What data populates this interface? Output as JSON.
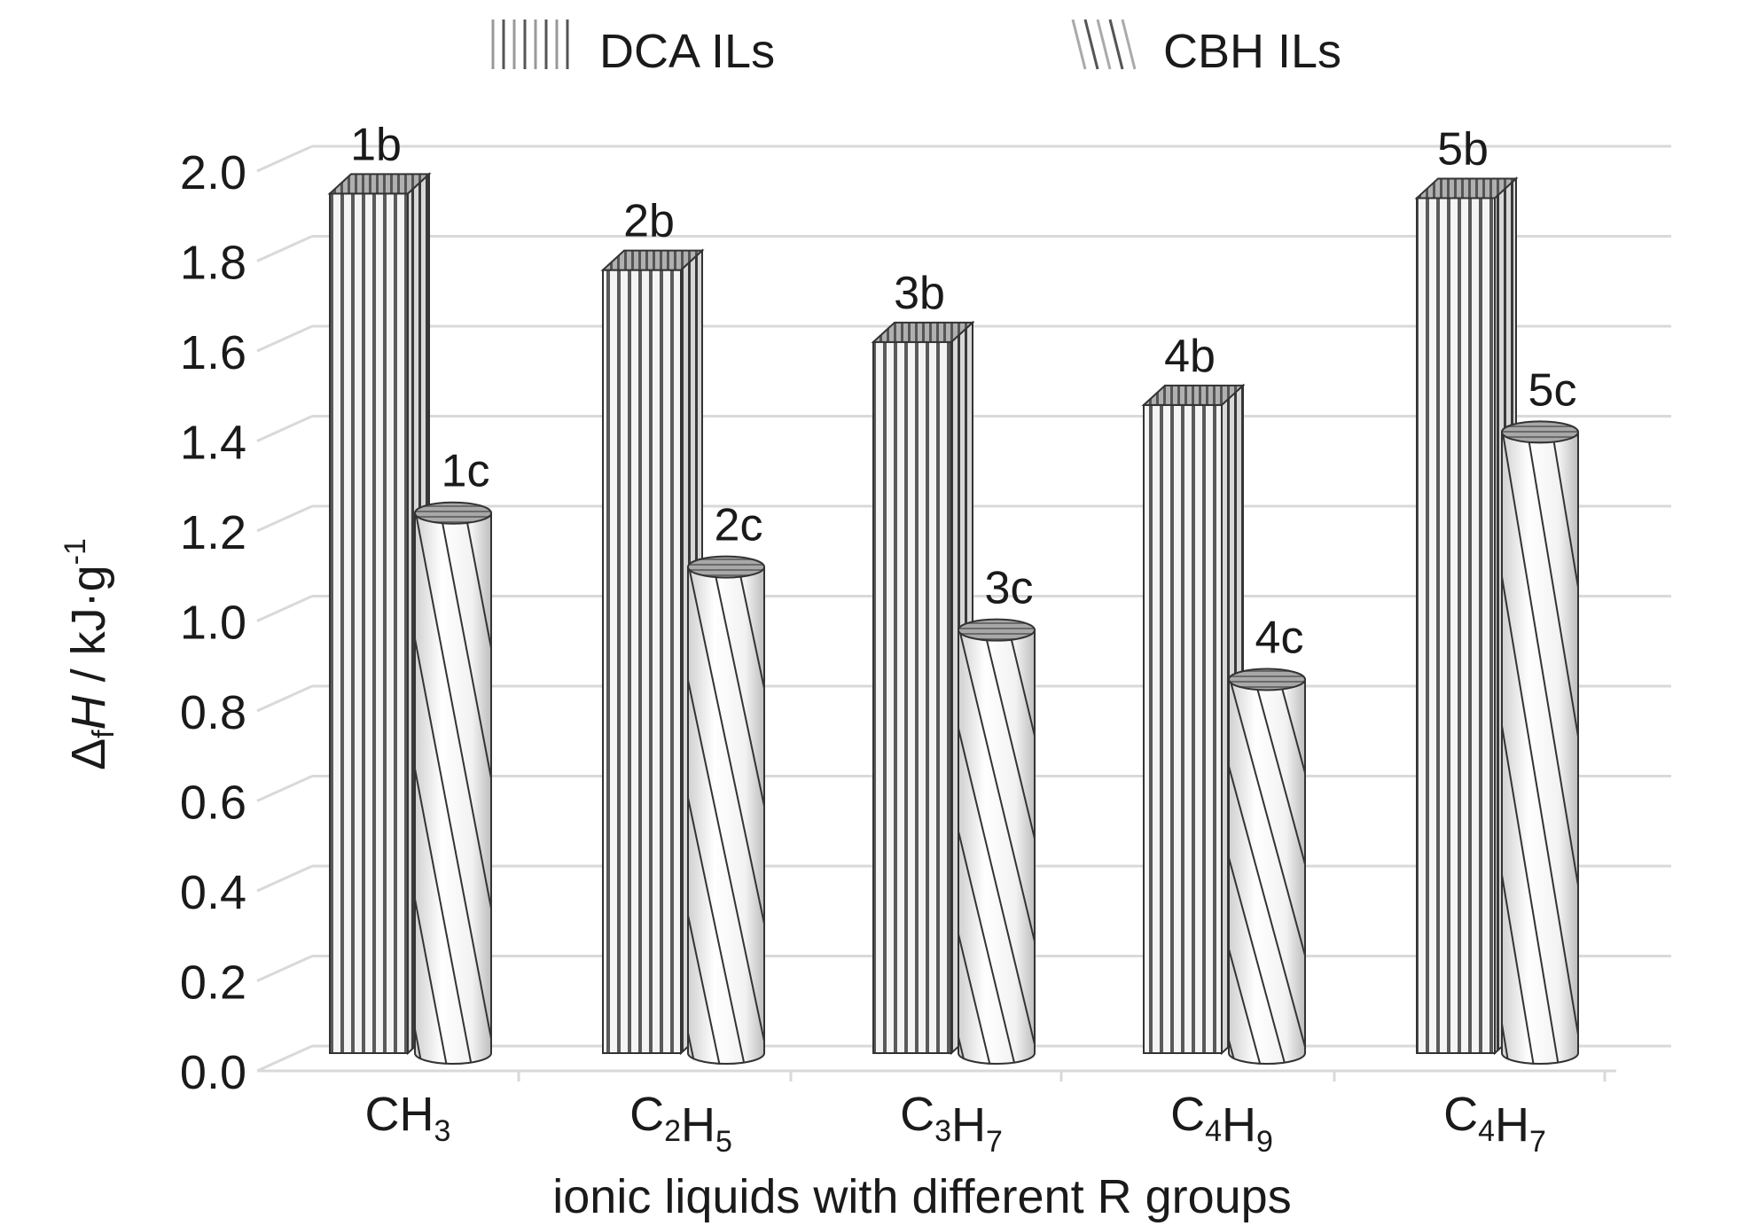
{
  "chart_data": {
    "type": "bar",
    "xlabel": "ionic liquids with different R groups",
    "ylabel": {
      "delta": "Δ",
      "sub": "f",
      "var": "H",
      "unit": " / kJ·g",
      "sup": "-1"
    },
    "ylim": [
      0,
      2.0
    ],
    "yticks": [
      "0.0",
      "0.2",
      "0.4",
      "0.6",
      "0.8",
      "1.0",
      "1.2",
      "1.4",
      "1.6",
      "1.8",
      "2.0"
    ],
    "grid": true,
    "legend_position": "top",
    "categories": [
      {
        "base": "CH",
        "sub": "3",
        "parts": [
          [
            "CH",
            "3"
          ]
        ]
      },
      {
        "parts": [
          [
            "C",
            "2"
          ],
          [
            "H",
            "5"
          ]
        ]
      },
      {
        "parts": [
          [
            "C",
            "3"
          ],
          [
            "H",
            "7"
          ]
        ]
      },
      {
        "parts": [
          [
            "C",
            "4"
          ],
          [
            "H",
            "9"
          ]
        ]
      },
      {
        "parts": [
          [
            "C",
            "4"
          ],
          [
            "H",
            "7"
          ]
        ]
      }
    ],
    "series": [
      {
        "name": "DCA ILs",
        "pattern": "vertical-stripes",
        "values": [
          1.95,
          1.78,
          1.62,
          1.48,
          1.94
        ],
        "labels": [
          "1b",
          "2b",
          "3b",
          "4b",
          "5b"
        ]
      },
      {
        "name": "CBH ILs",
        "pattern": "diagonal-stripes",
        "values": [
          1.24,
          1.12,
          0.98,
          0.87,
          1.42
        ],
        "labels": [
          "1c",
          "2c",
          "3c",
          "4c",
          "5c"
        ]
      }
    ],
    "colors": {
      "stripe_dark": "#5a5a5a",
      "stripe_light": "#f4f4f4",
      "grid": "#d9d9d9",
      "cap": "#9a9a9a"
    }
  }
}
